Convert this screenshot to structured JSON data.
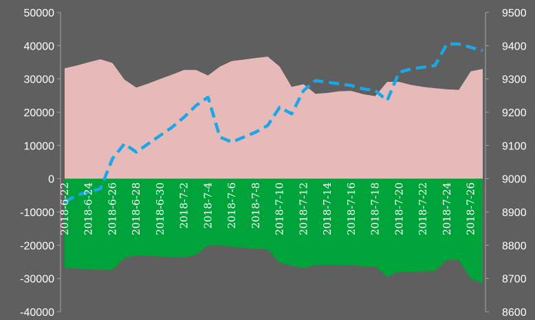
{
  "chart_data": {
    "type": "area",
    "x": [
      "2018-6-22",
      "2018-6-23",
      "2018-6-24",
      "2018-6-25",
      "2018-6-26",
      "2018-6-27",
      "2018-6-28",
      "2018-6-29",
      "2018-6-30",
      "2018-7-1",
      "2018-7-2",
      "2018-7-3",
      "2018-7-4",
      "2018-7-5",
      "2018-7-6",
      "2018-7-7",
      "2018-7-8",
      "2018-7-9",
      "2018-7-10",
      "2018-7-11",
      "2018-7-12",
      "2018-7-13",
      "2018-7-14",
      "2018-7-15",
      "2018-7-16",
      "2018-7-17",
      "2018-7-18",
      "2018-7-19",
      "2018-7-20",
      "2018-7-21",
      "2018-7-22",
      "2018-7-23",
      "2018-7-24",
      "2018-7-25",
      "2018-7-26",
      "2018-7-27"
    ],
    "x_tick_labels": [
      "2018-6-22",
      "2018-6-24",
      "2018-6-26",
      "2018-6-28",
      "2018-6-30",
      "2018-7-2",
      "2018-7-4",
      "2018-7-6",
      "2018-7-8",
      "2018-7-10",
      "2018-7-12",
      "2018-7-14",
      "2018-7-16",
      "2018-7-18",
      "2018-7-20",
      "2018-7-22",
      "2018-7-24",
      "2018-7-26"
    ],
    "series": [
      {
        "kind": "area",
        "axis": "left",
        "color": "#e8b9b9",
        "values": [
          33200,
          34000,
          35000,
          35900,
          34800,
          29800,
          27400,
          28600,
          30000,
          31300,
          32700,
          32700,
          31000,
          33700,
          35400,
          35800,
          36300,
          36700,
          33700,
          27600,
          28400,
          25500,
          25800,
          26300,
          26400,
          25400,
          24800,
          29100,
          29100,
          28200,
          27600,
          27200,
          26900,
          26700,
          32300,
          33000
        ]
      },
      {
        "kind": "area",
        "axis": "left",
        "color": "#00a33a",
        "values": [
          -26800,
          -27000,
          -27200,
          -27400,
          -27500,
          -23900,
          -23000,
          -23200,
          -23400,
          -23500,
          -23600,
          -22900,
          -20100,
          -20000,
          -20500,
          -20800,
          -21100,
          -21300,
          -25300,
          -26200,
          -26900,
          -25900,
          -25900,
          -25900,
          -26000,
          -26400,
          -26400,
          -29500,
          -28000,
          -28000,
          -27900,
          -27800,
          -24400,
          -24500,
          -30100,
          -31600
        ]
      },
      {
        "kind": "line",
        "axis": "right",
        "color": "#1aa7e8",
        "dashed": true,
        "values": [
          8930,
          8950,
          8960,
          8970,
          9060,
          9105,
          9080,
          9105,
          9130,
          9155,
          9185,
          9220,
          9245,
          9125,
          9110,
          9125,
          9140,
          9160,
          9215,
          9195,
          9265,
          9295,
          9290,
          9285,
          9280,
          9270,
          9265,
          9235,
          9320,
          9330,
          9335,
          9340,
          9405,
          9405,
          9395,
          9385
        ]
      }
    ],
    "y_left": {
      "ticks": [
        "50000",
        "40000",
        "30000",
        "20000",
        "10000",
        "0",
        "-10000",
        "-20000",
        "-30000",
        "-40000"
      ],
      "ylim": [
        -40000,
        50000
      ]
    },
    "y_right": {
      "ticks": [
        "9500",
        "9400",
        "9300",
        "9200",
        "9100",
        "9000",
        "8900",
        "8800",
        "8700",
        "8600"
      ],
      "ylim": [
        8600,
        9500
      ]
    },
    "colors": {
      "background": "#5f5f5f",
      "axis": "#a6a6a6",
      "text": "#ffffff"
    },
    "grid": false,
    "legend": "none"
  }
}
